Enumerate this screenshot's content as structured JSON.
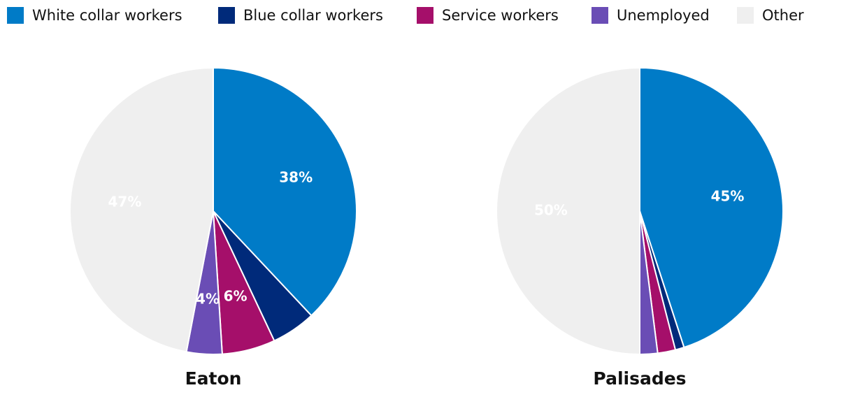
{
  "chart_data": [
    {
      "type": "pie",
      "title": "Eaton",
      "categories": [
        "White collar workers",
        "Blue collar workers",
        "Service workers",
        "Unemployed",
        "Other"
      ],
      "values": [
        38,
        5,
        6,
        4,
        47
      ],
      "value_labels": [
        "38%",
        null,
        "6%",
        "4%",
        "47%"
      ],
      "colors": [
        "#007bc7",
        "#002a7a",
        "#a50f6a",
        "#6a4db5",
        "#efefef"
      ]
    },
    {
      "type": "pie",
      "title": "Palisades",
      "categories": [
        "White collar workers",
        "Blue collar workers",
        "Service workers",
        "Unemployed",
        "Other"
      ],
      "values": [
        45,
        1,
        2,
        2,
        50
      ],
      "value_labels": [
        "45%",
        null,
        null,
        null,
        "50%"
      ],
      "colors": [
        "#007bc7",
        "#002a7a",
        "#a50f6a",
        "#6a4db5",
        "#efefef"
      ]
    }
  ]
}
